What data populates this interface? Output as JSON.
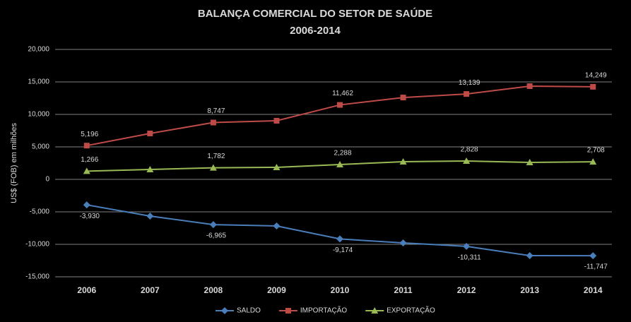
{
  "chart_data": {
    "type": "line",
    "title": "BALANÇA COMERCIAL DO SETOR DE SAÚDE",
    "subtitle": "2006-2014",
    "y_label": "US$ (FOB) em milhões",
    "categories": [
      "2006",
      "2007",
      "2008",
      "2009",
      "2010",
      "2011",
      "2012",
      "2013",
      "2014"
    ],
    "ylim": [
      -15000,
      20000
    ],
    "yticks": [
      {
        "value": -15000,
        "label": "-15,000"
      },
      {
        "value": -10000,
        "label": "-10,000"
      },
      {
        "value": -5000,
        "label": "-5,000"
      },
      0,
      {
        "value": 5000,
        "label": "5,000"
      },
      {
        "value": 10000,
        "label": "10,000"
      },
      {
        "value": 15000,
        "label": "15,000"
      },
      {
        "value": 20000,
        "label": "20,000"
      }
    ],
    "grid": true,
    "legend": "bottom",
    "series": [
      {
        "name": "SALDO",
        "color": "#4a7ebb",
        "marker": "diamond",
        "values": [
          -3930,
          -5650,
          -6965,
          -7170,
          -9174,
          -9780,
          -10311,
          -11740,
          -11747
        ],
        "value_labels": [
          "-3,930",
          null,
          "-6,965",
          null,
          "-9,174",
          null,
          "-10,311",
          null,
          "-11,747"
        ]
      },
      {
        "name": "IMPORTAÇÃO",
        "color": "#be4b48",
        "marker": "square",
        "values": [
          5196,
          7065,
          8747,
          9020,
          11462,
          12600,
          13139,
          14350,
          14249
        ],
        "value_labels": [
          "5,196",
          null,
          "8,747",
          null,
          "11,462",
          null,
          "13,139",
          null,
          "14,249"
        ]
      },
      {
        "name": "EXPORTAÇÃO",
        "color": "#98b954",
        "marker": "triangle",
        "values": [
          1266,
          1520,
          1782,
          1850,
          2288,
          2720,
          2828,
          2610,
          2708
        ],
        "value_labels": [
          "1,266",
          null,
          "1,782",
          null,
          "2,288",
          null,
          "2,828",
          null,
          "2,708"
        ]
      }
    ]
  }
}
